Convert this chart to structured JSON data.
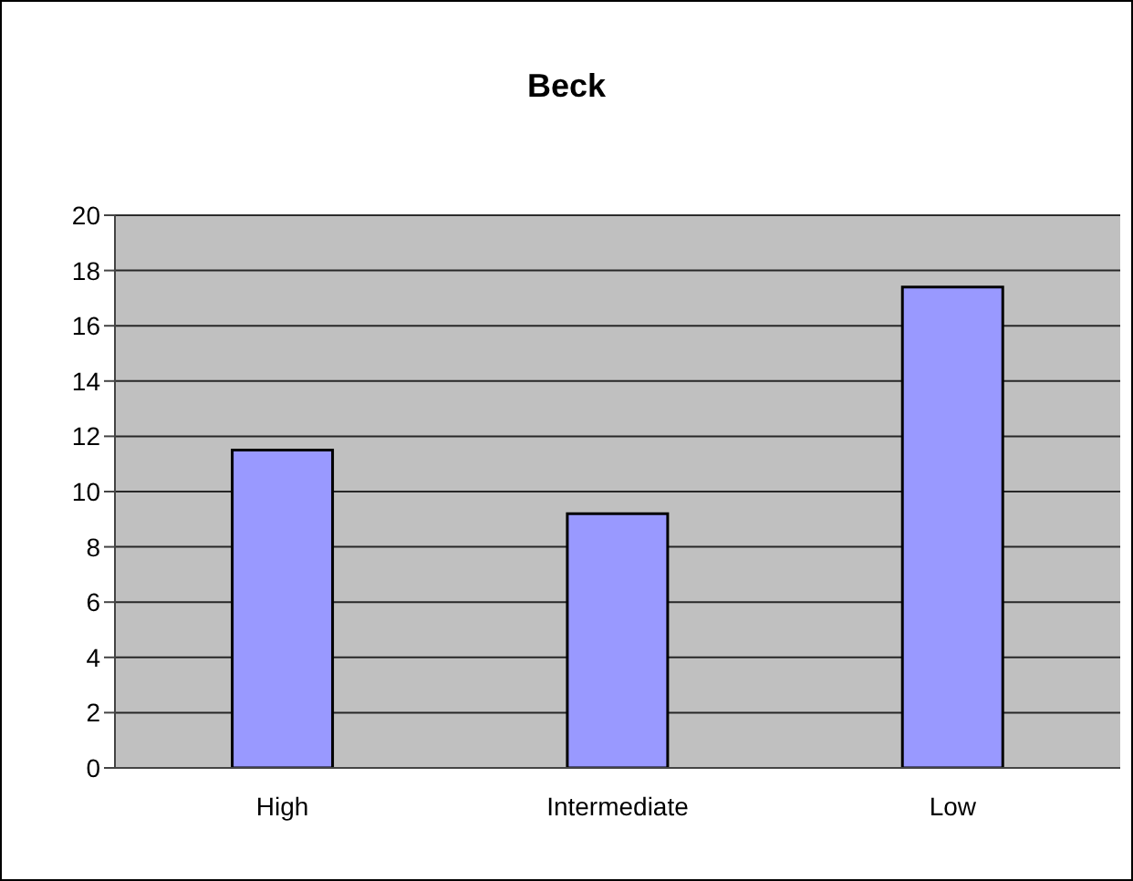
{
  "chart_data": {
    "type": "bar",
    "title": "Beck",
    "categories": [
      "High",
      "Intermediate",
      "Low"
    ],
    "values": [
      11.5,
      9.2,
      17.4
    ],
    "color": "#9999ff",
    "ylim": [
      0,
      20
    ],
    "yticks": [
      0,
      2,
      4,
      6,
      8,
      10,
      12,
      14,
      16,
      18,
      20
    ],
    "grid": "y",
    "legend": false
  }
}
